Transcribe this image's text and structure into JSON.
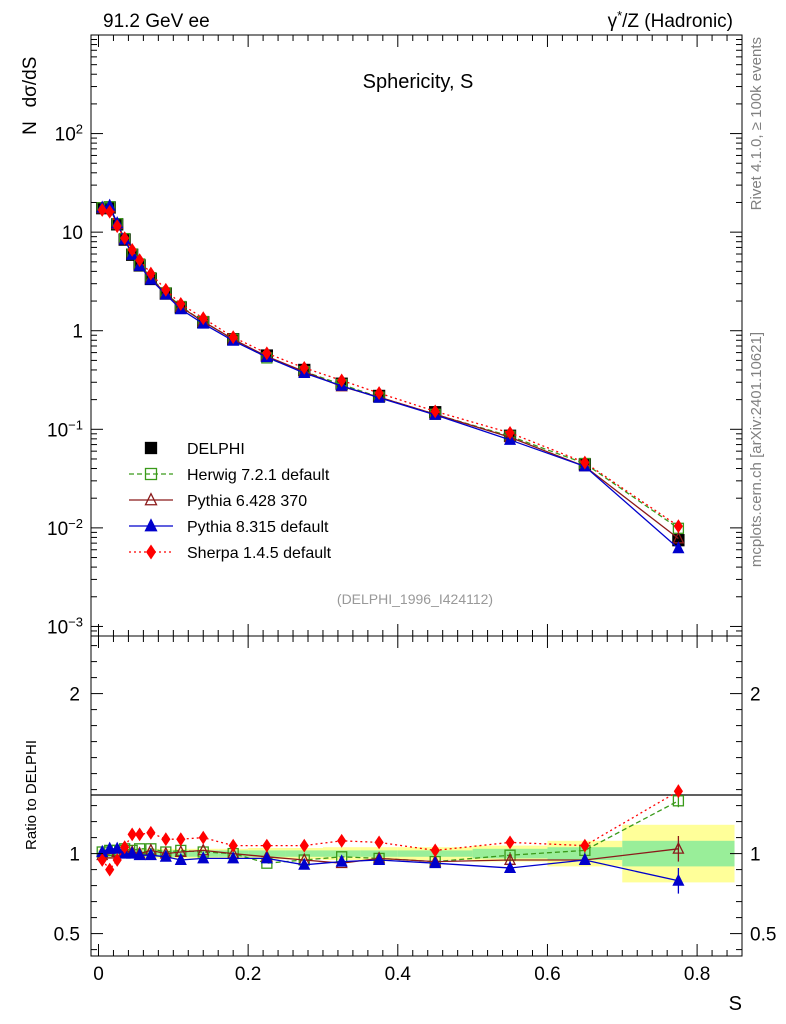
{
  "header": {
    "left": "91.2 GeV ee",
    "right_prefix": "γ",
    "right_sup": "*",
    "right_rest": "/Z (Hadronic)"
  },
  "side_text": {
    "rivet": "Rivet 4.1.0, ≥ 100k events",
    "mcplots": "mcplots.cern.ch [arXiv:2401.10621]"
  },
  "chart_data": [
    {
      "type": "line",
      "title": "Sphericity, S",
      "ylabel_n": "N",
      "ylabel_expr": "dσ/dS",
      "yscale": "log",
      "ylim": [
        0.0008,
        1000
      ],
      "xlim": [
        -0.01,
        0.86
      ],
      "analysis_tag": "(DELPHI_1996_I424112)",
      "x": [
        0.005,
        0.015,
        0.025,
        0.035,
        0.045,
        0.055,
        0.07,
        0.09,
        0.11,
        0.14,
        0.18,
        0.225,
        0.275,
        0.325,
        0.375,
        0.45,
        0.55,
        0.65,
        0.775
      ],
      "yticks": [
        {
          "value": 0.001,
          "base": "10",
          "exp": "−3"
        },
        {
          "value": 0.01,
          "base": "10",
          "exp": "−2"
        },
        {
          "value": 0.1,
          "base": "10",
          "exp": "−1"
        },
        {
          "value": 1,
          "base": "1",
          "exp": ""
        },
        {
          "value": 10,
          "base": "10",
          "exp": ""
        },
        {
          "value": 100,
          "base": "10",
          "exp": "2"
        }
      ],
      "series": [
        {
          "name": "DELPHI",
          "color": "#000000",
          "marker": "square-filled",
          "dash": "none",
          "values": [
            17.5,
            17.8,
            12.0,
            8.4,
            5.9,
            4.6,
            3.35,
            2.38,
            1.72,
            1.22,
            0.82,
            0.56,
            0.4,
            0.29,
            0.218,
            0.149,
            0.086,
            0.044,
            0.0075
          ]
        },
        {
          "name": "Herwig 7.2.1 default",
          "color": "#3a9a1a",
          "marker": "square-open",
          "dash": "5,3",
          "values": [
            17.7,
            18.1,
            12.2,
            8.6,
            6.0,
            4.75,
            3.45,
            2.42,
            1.76,
            1.24,
            0.82,
            0.53,
            0.385,
            0.285,
            0.212,
            0.142,
            0.085,
            0.045,
            0.0099
          ]
        },
        {
          "name": "Pythia 6.428 370",
          "color": "#8b1a1a",
          "marker": "triangle-open",
          "dash": "none",
          "values": [
            17.4,
            17.7,
            12.1,
            8.5,
            6.0,
            4.6,
            3.4,
            2.38,
            1.74,
            1.24,
            0.82,
            0.55,
            0.385,
            0.272,
            0.212,
            0.142,
            0.083,
            0.042,
            0.0078
          ]
        },
        {
          "name": "Pythia 8.315 default",
          "color": "#0000cc",
          "marker": "triangle-filled",
          "dash": "none",
          "values": [
            17.7,
            18.5,
            12.3,
            8.4,
            5.9,
            4.55,
            3.3,
            2.33,
            1.65,
            1.18,
            0.79,
            0.54,
            0.372,
            0.276,
            0.209,
            0.14,
            0.078,
            0.042,
            0.0062
          ]
        },
        {
          "name": "Sherpa 1.4.5 default",
          "color": "#ff0000",
          "marker": "diamond-filled",
          "dash": "2,3",
          "values": [
            16.8,
            16.1,
            11.5,
            8.7,
            6.6,
            5.2,
            3.8,
            2.6,
            1.87,
            1.34,
            0.86,
            0.59,
            0.42,
            0.313,
            0.233,
            0.152,
            0.092,
            0.046,
            0.0104
          ]
        }
      ]
    },
    {
      "type": "line",
      "title": "",
      "ylabel": "Ratio to DELPHI",
      "xlabel": "S",
      "ylim": [
        0.36,
        2.36
      ],
      "xlim": [
        -0.01,
        0.86
      ],
      "yticks": [
        {
          "value": 0.5,
          "label": "0.5"
        },
        {
          "value": 1,
          "label": "1"
        },
        {
          "value": 2,
          "label": "2"
        }
      ],
      "xticks": [
        {
          "value": 0,
          "label": "0"
        },
        {
          "value": 0.2,
          "label": "0.2"
        },
        {
          "value": 0.4,
          "label": "0.4"
        },
        {
          "value": 0.6,
          "label": "0.6"
        },
        {
          "value": 0.8,
          "label": "0.8"
        }
      ],
      "x": [
        0.005,
        0.015,
        0.025,
        0.035,
        0.045,
        0.055,
        0.07,
        0.09,
        0.11,
        0.14,
        0.18,
        0.225,
        0.275,
        0.325,
        0.375,
        0.45,
        0.55,
        0.65,
        0.775
      ],
      "band_bins": [
        {
          "lo": 0.0,
          "hi": 0.01,
          "stat": 0.02,
          "tot": 0.03
        },
        {
          "lo": 0.01,
          "hi": 0.02,
          "stat": 0.02,
          "tot": 0.03
        },
        {
          "lo": 0.02,
          "hi": 0.03,
          "stat": 0.02,
          "tot": 0.03
        },
        {
          "lo": 0.03,
          "hi": 0.04,
          "stat": 0.02,
          "tot": 0.03
        },
        {
          "lo": 0.04,
          "hi": 0.05,
          "stat": 0.02,
          "tot": 0.03
        },
        {
          "lo": 0.05,
          "hi": 0.06,
          "stat": 0.02,
          "tot": 0.03
        },
        {
          "lo": 0.06,
          "hi": 0.08,
          "stat": 0.02,
          "tot": 0.03
        },
        {
          "lo": 0.08,
          "hi": 0.1,
          "stat": 0.02,
          "tot": 0.03
        },
        {
          "lo": 0.1,
          "hi": 0.12,
          "stat": 0.02,
          "tot": 0.03
        },
        {
          "lo": 0.12,
          "hi": 0.16,
          "stat": 0.02,
          "tot": 0.03
        },
        {
          "lo": 0.16,
          "hi": 0.2,
          "stat": 0.02,
          "tot": 0.03
        },
        {
          "lo": 0.2,
          "hi": 0.25,
          "stat": 0.02,
          "tot": 0.035
        },
        {
          "lo": 0.25,
          "hi": 0.3,
          "stat": 0.02,
          "tot": 0.035
        },
        {
          "lo": 0.3,
          "hi": 0.35,
          "stat": 0.02,
          "tot": 0.04
        },
        {
          "lo": 0.35,
          "hi": 0.4,
          "stat": 0.02,
          "tot": 0.04
        },
        {
          "lo": 0.4,
          "hi": 0.5,
          "stat": 0.02,
          "tot": 0.04
        },
        {
          "lo": 0.5,
          "hi": 0.6,
          "stat": 0.03,
          "tot": 0.05
        },
        {
          "lo": 0.6,
          "hi": 0.7,
          "stat": 0.04,
          "tot": 0.08
        },
        {
          "lo": 0.7,
          "hi": 0.85,
          "stat": 0.08,
          "tot": 0.18
        }
      ],
      "series": [
        {
          "name": "Herwig 7.2.1 default",
          "color": "#3a9a1a",
          "marker": "square-open",
          "dash": "5,3",
          "values": [
            1.01,
            1.02,
            1.02,
            1.03,
            1.02,
            1.03,
            1.03,
            1.01,
            1.02,
            1.01,
            1.0,
            0.94,
            0.96,
            0.98,
            0.97,
            0.95,
            0.99,
            1.02,
            1.33
          ],
          "errors": [
            0,
            0,
            0,
            0,
            0,
            0,
            0,
            0,
            0,
            0,
            0,
            0,
            0,
            0,
            0,
            0,
            0.02,
            0.03,
            0.04
          ]
        },
        {
          "name": "Pythia 6.428 370",
          "color": "#8b1a1a",
          "marker": "triangle-open",
          "dash": "none",
          "values": [
            0.99,
            1.0,
            1.01,
            1.02,
            1.01,
            1.0,
            1.02,
            1.0,
            1.01,
            1.02,
            1.0,
            0.98,
            0.96,
            0.94,
            0.97,
            0.95,
            0.96,
            0.96,
            1.03
          ],
          "errors": [
            0,
            0,
            0,
            0,
            0,
            0,
            0,
            0,
            0,
            0,
            0,
            0,
            0,
            0,
            0,
            0,
            0.02,
            0.03,
            0.08
          ]
        },
        {
          "name": "Pythia 8.315 default",
          "color": "#0000cc",
          "marker": "triangle-filled",
          "dash": "none",
          "values": [
            1.01,
            1.03,
            1.03,
            1.0,
            1.0,
            0.99,
            0.99,
            0.98,
            0.96,
            0.97,
            0.97,
            0.97,
            0.93,
            0.95,
            0.96,
            0.94,
            0.91,
            0.96,
            0.83
          ],
          "errors": [
            0,
            0,
            0,
            0,
            0,
            0,
            0,
            0,
            0,
            0,
            0,
            0,
            0,
            0,
            0,
            0,
            0.02,
            0.03,
            0.08
          ]
        },
        {
          "name": "Sherpa 1.4.5 default",
          "color": "#ff0000",
          "marker": "diamond-filled",
          "dash": "2,3",
          "values": [
            0.96,
            0.9,
            0.96,
            1.04,
            1.12,
            1.12,
            1.13,
            1.09,
            1.09,
            1.1,
            1.05,
            1.05,
            1.05,
            1.08,
            1.07,
            1.02,
            1.07,
            1.05,
            1.39
          ],
          "errors": [
            0,
            0,
            0,
            0,
            0,
            0,
            0,
            0,
            0,
            0,
            0,
            0,
            0,
            0,
            0,
            0,
            0.02,
            0.03,
            0.04
          ]
        }
      ]
    }
  ]
}
